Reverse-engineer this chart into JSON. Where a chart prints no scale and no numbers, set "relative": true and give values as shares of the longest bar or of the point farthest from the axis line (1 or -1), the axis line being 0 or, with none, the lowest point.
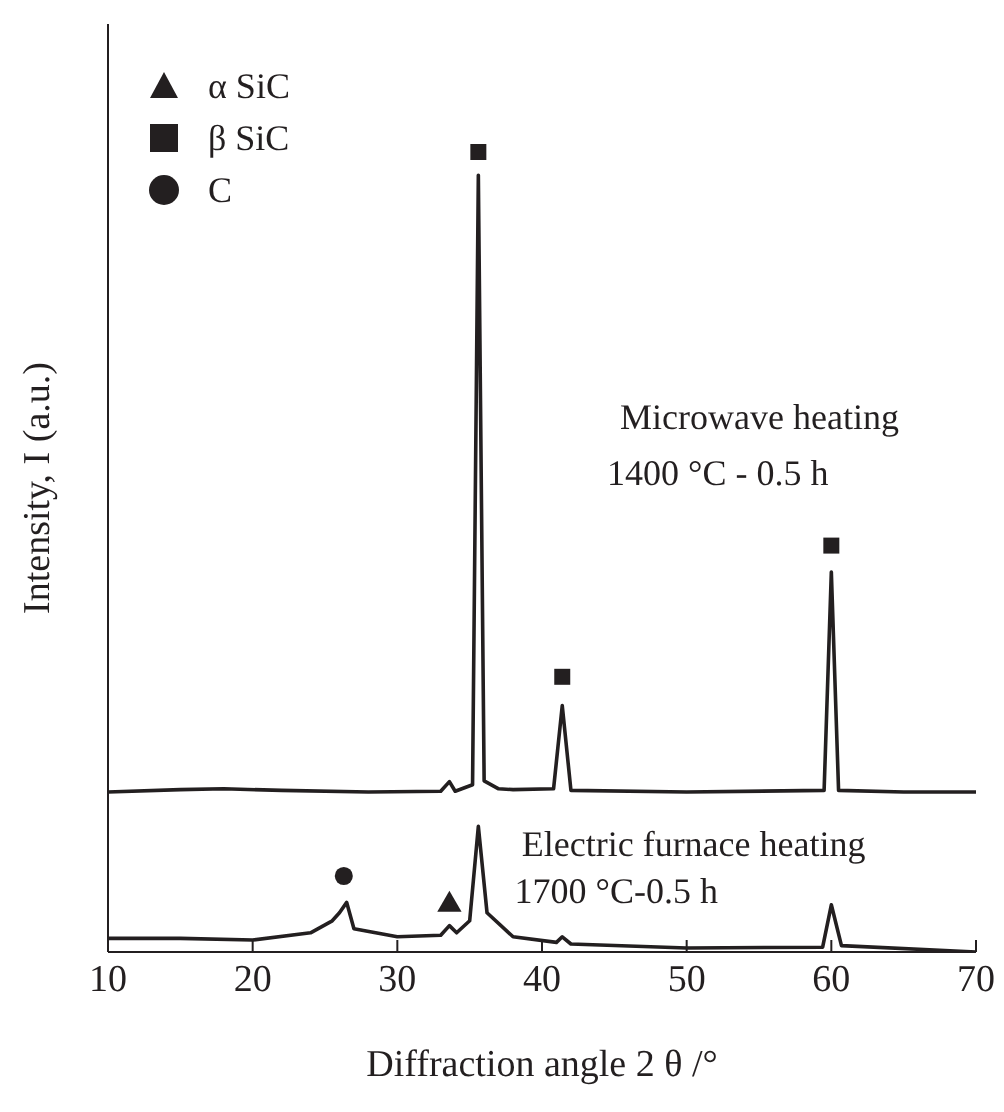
{
  "chart_data": {
    "type": "line",
    "relative": true,
    "xlabel": "Diffraction angle 2 θ /°",
    "ylabel": "Intensity, I (a.u.)",
    "xlim": [
      10,
      70
    ],
    "xticks": [
      10,
      20,
      30,
      40,
      50,
      60,
      70
    ],
    "legend": "top left",
    "line_style": "solid",
    "series": [
      {
        "color": "#231f20",
        "marker": "none",
        "x": [
          10,
          15,
          18,
          22,
          28,
          33,
          33.6,
          34,
          35.2,
          35.6,
          36,
          37,
          38,
          40.8,
          41.4,
          42,
          50,
          59.5,
          60,
          60.5,
          65,
          70
        ],
        "values": [
          0.2,
          0.203,
          0.204,
          0.202,
          0.2,
          0.201,
          0.213,
          0.201,
          0.209,
          0.971,
          0.214,
          0.204,
          0.203,
          0.204,
          0.308,
          0.202,
          0.2,
          0.202,
          0.475,
          0.202,
          0.2,
          0.2
        ]
      },
      {
        "color": "#231f20",
        "marker": "none",
        "x": [
          10,
          15,
          20,
          24,
          25.5,
          26,
          26.5,
          27,
          30,
          33,
          33.6,
          34.1,
          35,
          35.6,
          36.2,
          38,
          41,
          41.4,
          42,
          50,
          59.4,
          60,
          60.7,
          70
        ],
        "values": [
          0.017,
          0.017,
          0.015,
          0.024,
          0.039,
          0.049,
          0.062,
          0.029,
          0.019,
          0.021,
          0.033,
          0.024,
          0.039,
          0.157,
          0.049,
          0.019,
          0.012,
          0.019,
          0.01,
          0.005,
          0.006,
          0.059,
          0.008,
          0.0
        ]
      },
      {
        "type": "scatter",
        "name": "α SiC",
        "color": "#231f20",
        "marker": "triangle",
        "x": [
          33.6
        ],
        "values": [
          0.059
        ]
      },
      {
        "type": "scatter",
        "name": "β SiC",
        "color": "#231f20",
        "marker": "square",
        "x": [
          35.6,
          41.4,
          60
        ],
        "values": [
          1.0,
          0.344,
          0.508
        ]
      },
      {
        "type": "scatter",
        "name": "C",
        "color": "#231f20",
        "marker": "circle",
        "x": [
          26.3
        ],
        "values": [
          0.095
        ]
      }
    ],
    "annotations": [
      "Microwave heating",
      "1400 °C - 0.5 h",
      "Electric furnace heating",
      "1700 °C-0.5 h"
    ]
  }
}
